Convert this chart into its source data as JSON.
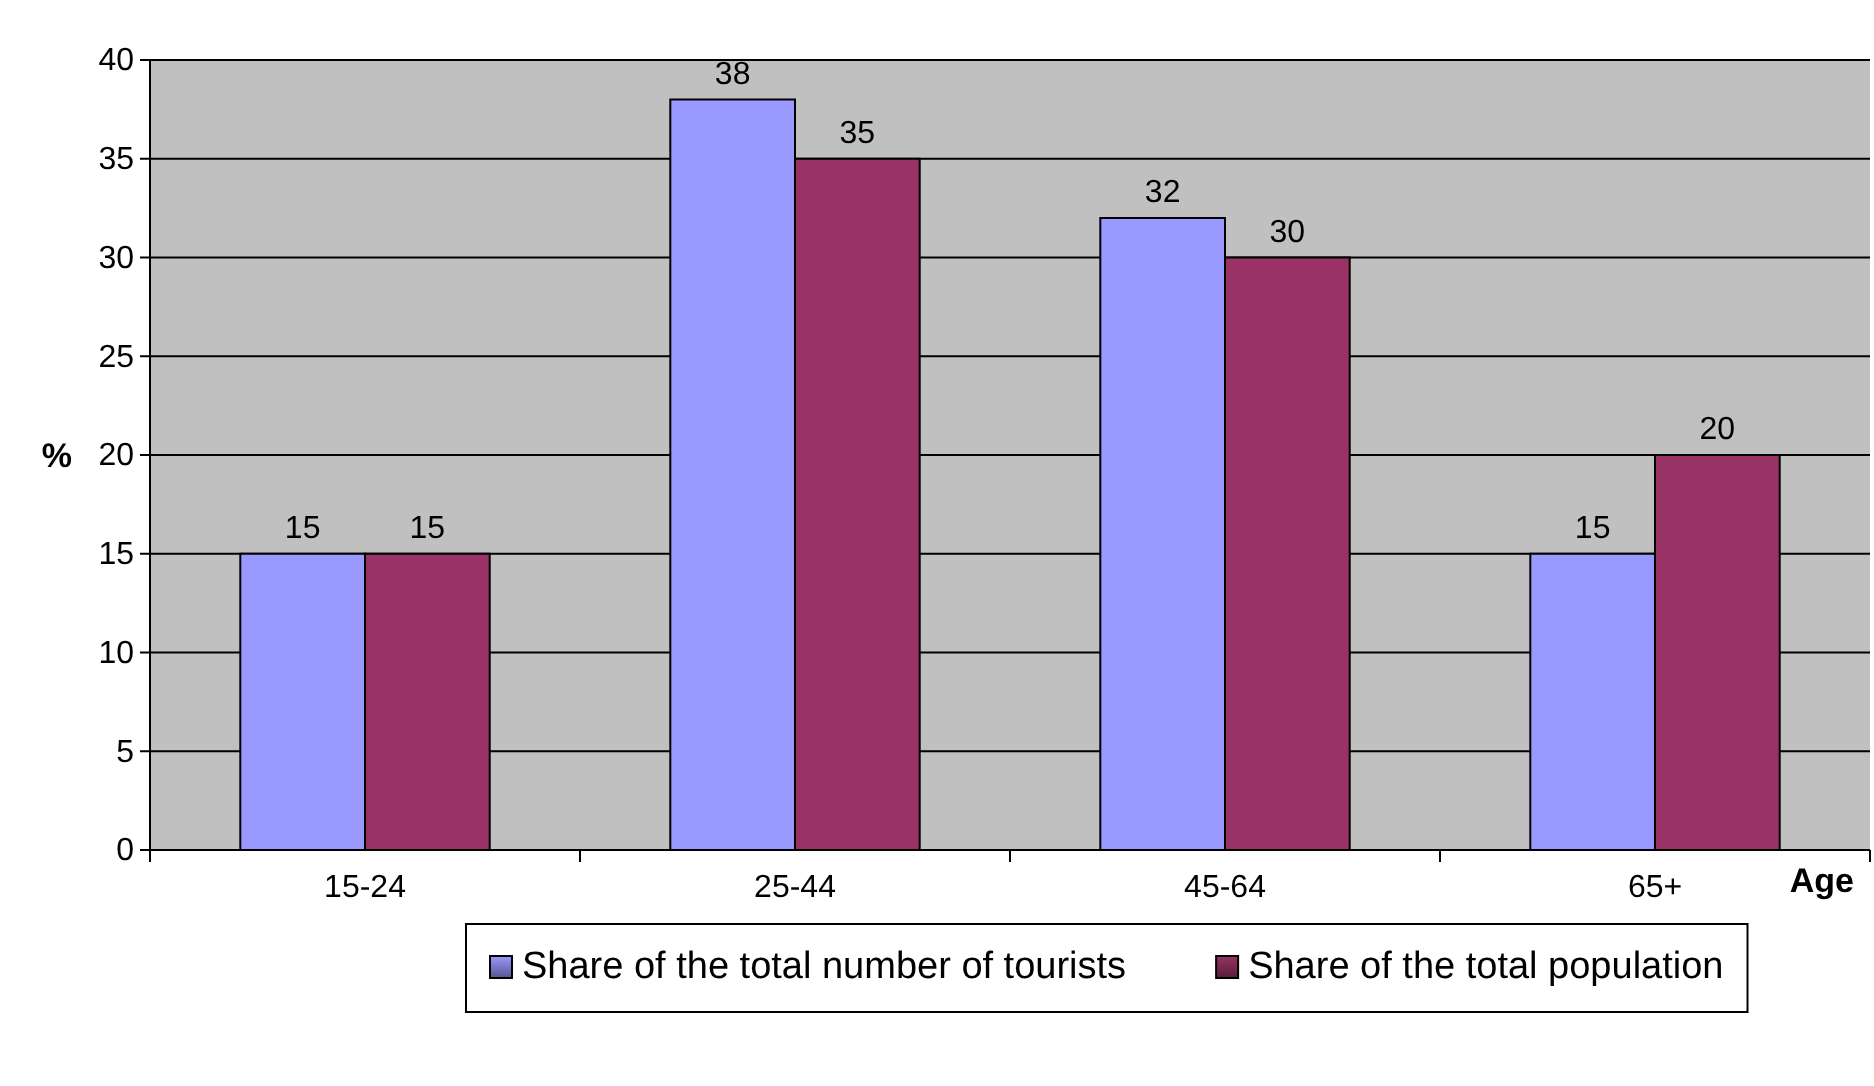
{
  "chart_data": {
    "type": "bar",
    "xlabel": "Age",
    "ylabel": "%",
    "categories": [
      "15-24",
      "25-44",
      "45-64",
      "65+"
    ],
    "series": [
      {
        "name": "Share of the total number of tourists",
        "color": "#9999ff",
        "values": [
          15,
          38,
          32,
          15
        ]
      },
      {
        "name": "Share of the total population",
        "color": "#993366",
        "values": [
          15,
          35,
          30,
          20
        ]
      }
    ],
    "ylim": [
      0,
      40
    ],
    "yticks": [
      0,
      5,
      10,
      15,
      20,
      25,
      30,
      35,
      40
    ],
    "grid": "y",
    "legend": "bottom",
    "data_labels": true
  }
}
